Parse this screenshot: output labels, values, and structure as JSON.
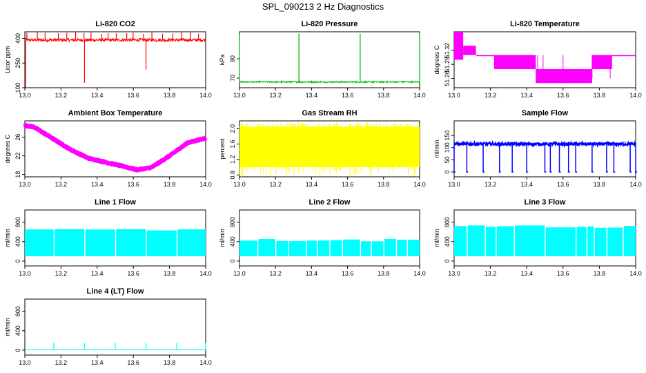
{
  "figure_title": "SPL_090213  2 Hz Diagnostics",
  "chart_data": [
    {
      "type": "line",
      "title": "Li-820 CO2",
      "ylabel": "Licor ppm",
      "color": "#ff0000",
      "xlim": [
        13.0,
        14.0
      ],
      "ylim": [
        100,
        440
      ],
      "xticks": [
        13.0,
        13.2,
        13.4,
        13.6,
        13.8,
        14.0
      ],
      "xtick_labels": [
        "13.0",
        "13.2",
        "13.4",
        "13.6",
        "13.8",
        "14.0"
      ],
      "yticks": [
        100,
        250,
        400
      ],
      "ytick_labels": [
        "100",
        "250",
        "400"
      ],
      "base": 390,
      "noise": 10,
      "dropouts": [
        [
          13.0,
          100
        ],
        [
          13.33,
          130
        ],
        [
          13.67,
          210
        ]
      ],
      "spikes": 20,
      "spike_to": 440
    },
    {
      "type": "line",
      "title": "Li-820 Pressure",
      "ylabel": "kPa",
      "color": "#00bb00",
      "xlim": [
        13.0,
        14.0
      ],
      "ylim": [
        65,
        94
      ],
      "xticks": [
        13.0,
        13.2,
        13.4,
        13.6,
        13.8,
        14.0
      ],
      "xtick_labels": [
        "13.0",
        "13.2",
        "13.4",
        "13.6",
        "13.8",
        "14.0"
      ],
      "yticks": [
        70,
        80
      ],
      "ytick_labels": [
        "70",
        "80"
      ],
      "base": 68,
      "noise": 0.4,
      "spike_positions": [
        13.0,
        13.33,
        13.67,
        14.0
      ],
      "spike_to": 93
    },
    {
      "type": "line",
      "title": "Li-820 Temperature",
      "ylabel": "degrees C",
      "color": "#ff00ff",
      "xlim": [
        13.0,
        14.0
      ],
      "ylim": [
        51.24,
        51.36
      ],
      "xticks": [
        13.0,
        13.2,
        13.4,
        13.6,
        13.8,
        14.0
      ],
      "xtick_labels": [
        "13.0",
        "13.2",
        "13.4",
        "13.6",
        "13.8",
        "14.0"
      ],
      "yticks": [
        51.26,
        51.29,
        51.32
      ],
      "ytick_labels": [
        "51.26",
        "51.29",
        "51.32"
      ],
      "segments": [
        [
          13.0,
          13.05,
          51.3,
          51.36
        ],
        [
          13.05,
          13.12,
          51.31,
          51.33
        ],
        [
          13.12,
          13.22,
          51.31,
          51.31
        ],
        [
          13.22,
          13.45,
          51.28,
          51.31
        ],
        [
          13.45,
          13.76,
          51.25,
          51.28
        ],
        [
          13.76,
          13.87,
          51.28,
          51.31
        ],
        [
          13.87,
          14.0,
          51.31,
          51.31
        ]
      ]
    },
    {
      "type": "line",
      "title": "Ambient Box Temperature",
      "ylabel": "degrees C",
      "color": "#ff00ff",
      "xlim": [
        13.0,
        14.0
      ],
      "ylim": [
        17.5,
        29.5
      ],
      "xticks": [
        13.0,
        13.2,
        13.4,
        13.6,
        13.8,
        14.0
      ],
      "xtick_labels": [
        "13.0",
        "13.2",
        "13.4",
        "13.6",
        "13.8",
        "14.0"
      ],
      "yticks": [
        18,
        22,
        26
      ],
      "ytick_labels": [
        "18",
        "22",
        "26"
      ],
      "curve": [
        [
          13.0,
          28.5
        ],
        [
          13.05,
          28.2
        ],
        [
          13.15,
          25.8
        ],
        [
          13.25,
          23.4
        ],
        [
          13.35,
          21.5
        ],
        [
          13.45,
          20.6
        ],
        [
          13.55,
          19.7
        ],
        [
          13.62,
          19.0
        ],
        [
          13.7,
          19.5
        ],
        [
          13.8,
          22.0
        ],
        [
          13.9,
          24.8
        ],
        [
          14.0,
          25.8
        ]
      ]
    },
    {
      "type": "line",
      "title": "Gas Stream RH",
      "ylabel": "percent",
      "color": "#ffff00",
      "xlim": [
        13.0,
        14.0
      ],
      "ylim": [
        0.75,
        2.2
      ],
      "xticks": [
        13.0,
        13.2,
        13.4,
        13.6,
        13.8,
        14.0
      ],
      "xtick_labels": [
        "13.0",
        "13.2",
        "13.4",
        "13.6",
        "13.8",
        "14.0"
      ],
      "yticks": [
        0.8,
        1.2,
        1.6,
        2.0
      ],
      "ytick_labels": [
        "0.8",
        "1.2",
        "1.6",
        "2.0"
      ],
      "band": [
        1.0,
        2.05
      ]
    },
    {
      "type": "line",
      "title": "Sample Flow",
      "ylabel": "ml/min",
      "color": "#0000ff",
      "xlim": [
        13.0,
        14.0
      ],
      "ylim": [
        -20,
        210
      ],
      "xticks": [
        13.0,
        13.2,
        13.4,
        13.6,
        13.8,
        14.0
      ],
      "xtick_labels": [
        "13.0",
        "13.2",
        "13.4",
        "13.6",
        "13.8",
        "14.0"
      ],
      "yticks": [
        0,
        50,
        100,
        150
      ],
      "ytick_labels": [
        "0",
        "50",
        "100",
        "150"
      ],
      "base": 115,
      "noise": 6,
      "dropout_positions": [
        13.0,
        13.07,
        13.16,
        13.25,
        13.32,
        13.4,
        13.5,
        13.53,
        13.58,
        13.63,
        13.67,
        13.76,
        13.84,
        13.88,
        13.97,
        14.0
      ]
    },
    {
      "type": "line",
      "title": "Line 1 Flow",
      "ylabel": "ml/min",
      "color": "#00ffff",
      "xlim": [
        13.0,
        14.0
      ],
      "ylim": [
        -100,
        1050
      ],
      "xticks": [
        13.0,
        13.2,
        13.4,
        13.6,
        13.8,
        14.0
      ],
      "xtick_labels": [
        "13.0",
        "13.2",
        "13.4",
        "13.6",
        "13.8",
        "14.0"
      ],
      "yticks": [
        0,
        400,
        800
      ],
      "ytick_labels": [
        "0",
        "400",
        "800"
      ],
      "low": 100,
      "high": 650,
      "gaps": [
        13.16,
        13.33,
        13.5,
        13.67,
        13.84
      ]
    },
    {
      "type": "line",
      "title": "Line 2 Flow",
      "ylabel": "ml/min",
      "color": "#00ffff",
      "xlim": [
        13.0,
        14.0
      ],
      "ylim": [
        -100,
        1050
      ],
      "xticks": [
        13.0,
        13.2,
        13.4,
        13.6,
        13.8,
        14.0
      ],
      "xtick_labels": [
        "13.0",
        "13.2",
        "13.4",
        "13.6",
        "13.8",
        "14.0"
      ],
      "yticks": [
        0,
        400,
        800
      ],
      "ytick_labels": [
        "0",
        "400",
        "800"
      ],
      "low": 100,
      "high": 430,
      "gaps": [
        13.1,
        13.2,
        13.27,
        13.37,
        13.43,
        13.5,
        13.57,
        13.67,
        13.73,
        13.8,
        13.87,
        13.93
      ]
    },
    {
      "type": "line",
      "title": "Line 3 Flow",
      "ylabel": "ml/min",
      "color": "#00ffff",
      "xlim": [
        13.0,
        14.0
      ],
      "ylim": [
        -100,
        1050
      ],
      "xticks": [
        13.0,
        13.2,
        13.4,
        13.6,
        13.8,
        14.0
      ],
      "xtick_labels": [
        "13.0",
        "13.2",
        "13.4",
        "13.6",
        "13.8",
        "14.0"
      ],
      "yticks": [
        0,
        400,
        800
      ],
      "ytick_labels": [
        "0",
        "400",
        "800"
      ],
      "low": 100,
      "high": 710,
      "gaps": [
        13.07,
        13.17,
        13.23,
        13.33,
        13.5,
        13.67,
        13.73,
        13.77,
        13.84,
        13.93
      ]
    },
    {
      "type": "line",
      "title": "Line 4 (LT) Flow",
      "ylabel": "ml/min",
      "color": "#00ffff",
      "xlim": [
        13.0,
        14.0
      ],
      "ylim": [
        -100,
        1050
      ],
      "xticks": [
        13.0,
        13.2,
        13.4,
        13.6,
        13.8,
        14.0
      ],
      "xtick_labels": [
        "13.0",
        "13.2",
        "13.4",
        "13.6",
        "13.8",
        "14.0"
      ],
      "yticks": [
        0,
        400,
        800
      ],
      "ytick_labels": [
        "0",
        "400",
        "800"
      ],
      "base": 15,
      "noise": 4,
      "spike_positions": [
        13.16,
        13.33,
        13.5,
        13.67,
        13.84,
        14.0
      ],
      "spike_to": 150
    }
  ]
}
